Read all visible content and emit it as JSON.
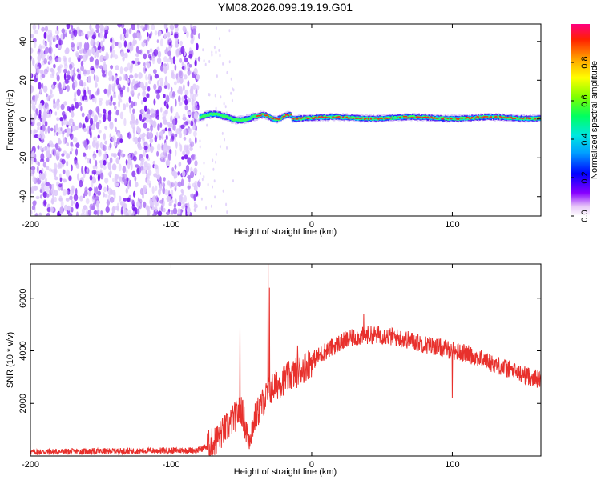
{
  "figure_title": "YM08.2026.099.19.19.G01",
  "chart_data": [
    {
      "type": "heatmap",
      "title": "YM08.2026.099.19.19.G01",
      "xlabel": "Height of straight line (km)",
      "ylabel": "Frequency (Hz)",
      "xlim": [
        -200,
        163
      ],
      "ylim": [
        -50,
        49
      ],
      "x_ticks": [
        -200,
        -100,
        0,
        100
      ],
      "x_tick_labels": [
        "-200",
        "-100",
        "0",
        "100"
      ],
      "y_ticks": [
        -40,
        -20,
        0,
        20,
        40
      ],
      "y_tick_labels": [
        "-40",
        "-20",
        "0",
        "20",
        "40"
      ],
      "colorbar": {
        "label": "Normalized spectral amplitude",
        "range": [
          0,
          1
        ],
        "ticks": [
          0.0,
          0.2,
          0.4,
          0.6,
          0.8
        ],
        "tick_labels": [
          "0.0",
          "0.2",
          "0.4",
          "0.6",
          "0.8"
        ],
        "colormap": "rainbow"
      },
      "regions": [
        {
          "x_range": [
            -200,
            -80
          ],
          "description": "broadband noise, amplitude ~0.05-0.2"
        },
        {
          "x_range": [
            -80,
            -40
          ],
          "freq_center": 2,
          "amplitude": 0.6
        },
        {
          "x_range": [
            -40,
            163
          ],
          "freq_center": 0.5,
          "amplitude": 0.9
        }
      ]
    },
    {
      "type": "line",
      "xlabel": "Height of straight line (km)",
      "ylabel": "SNR (10 * v/v)",
      "xlim": [
        -200,
        163
      ],
      "ylim": [
        0,
        7300
      ],
      "x_ticks": [
        -200,
        -100,
        0,
        100
      ],
      "x_tick_labels": [
        "-200",
        "-100",
        "0",
        "100"
      ],
      "y_ticks": [
        2000,
        4000,
        6000
      ],
      "y_tick_labels": [
        "2000",
        "4000",
        "6000"
      ],
      "series": [
        {
          "name": "SNR",
          "color": "#e8302c",
          "envelope": {
            "x": [
              -200,
              -80,
              -70,
              -60,
              -50,
              -45,
              -40,
              -35,
              -30,
              -25,
              -20,
              -10,
              0,
              10,
              20,
              30,
              40,
              50,
              60,
              70,
              80,
              90,
              100,
              110,
              120,
              130,
              140,
              150,
              163
            ],
            "y": [
              150,
              220,
              500,
              1100,
              1800,
              600,
              1500,
              2000,
              2500,
              2700,
              2900,
              3200,
              3600,
              4000,
              4300,
              4500,
              4600,
              4600,
              4500,
              4400,
              4250,
              4150,
              4000,
              3900,
              3700,
              3500,
              3300,
              3100,
              2900
            ]
          },
          "spikes": [
            {
              "x": -51,
              "y": 4900
            },
            {
              "x": -31,
              "y": 7300
            },
            {
              "x": -30,
              "y": 6400
            },
            {
              "x": -10,
              "y": 4200
            },
            {
              "x": 37,
              "y": 5400
            },
            {
              "x": 100,
              "y": 2200
            }
          ]
        }
      ]
    }
  ]
}
